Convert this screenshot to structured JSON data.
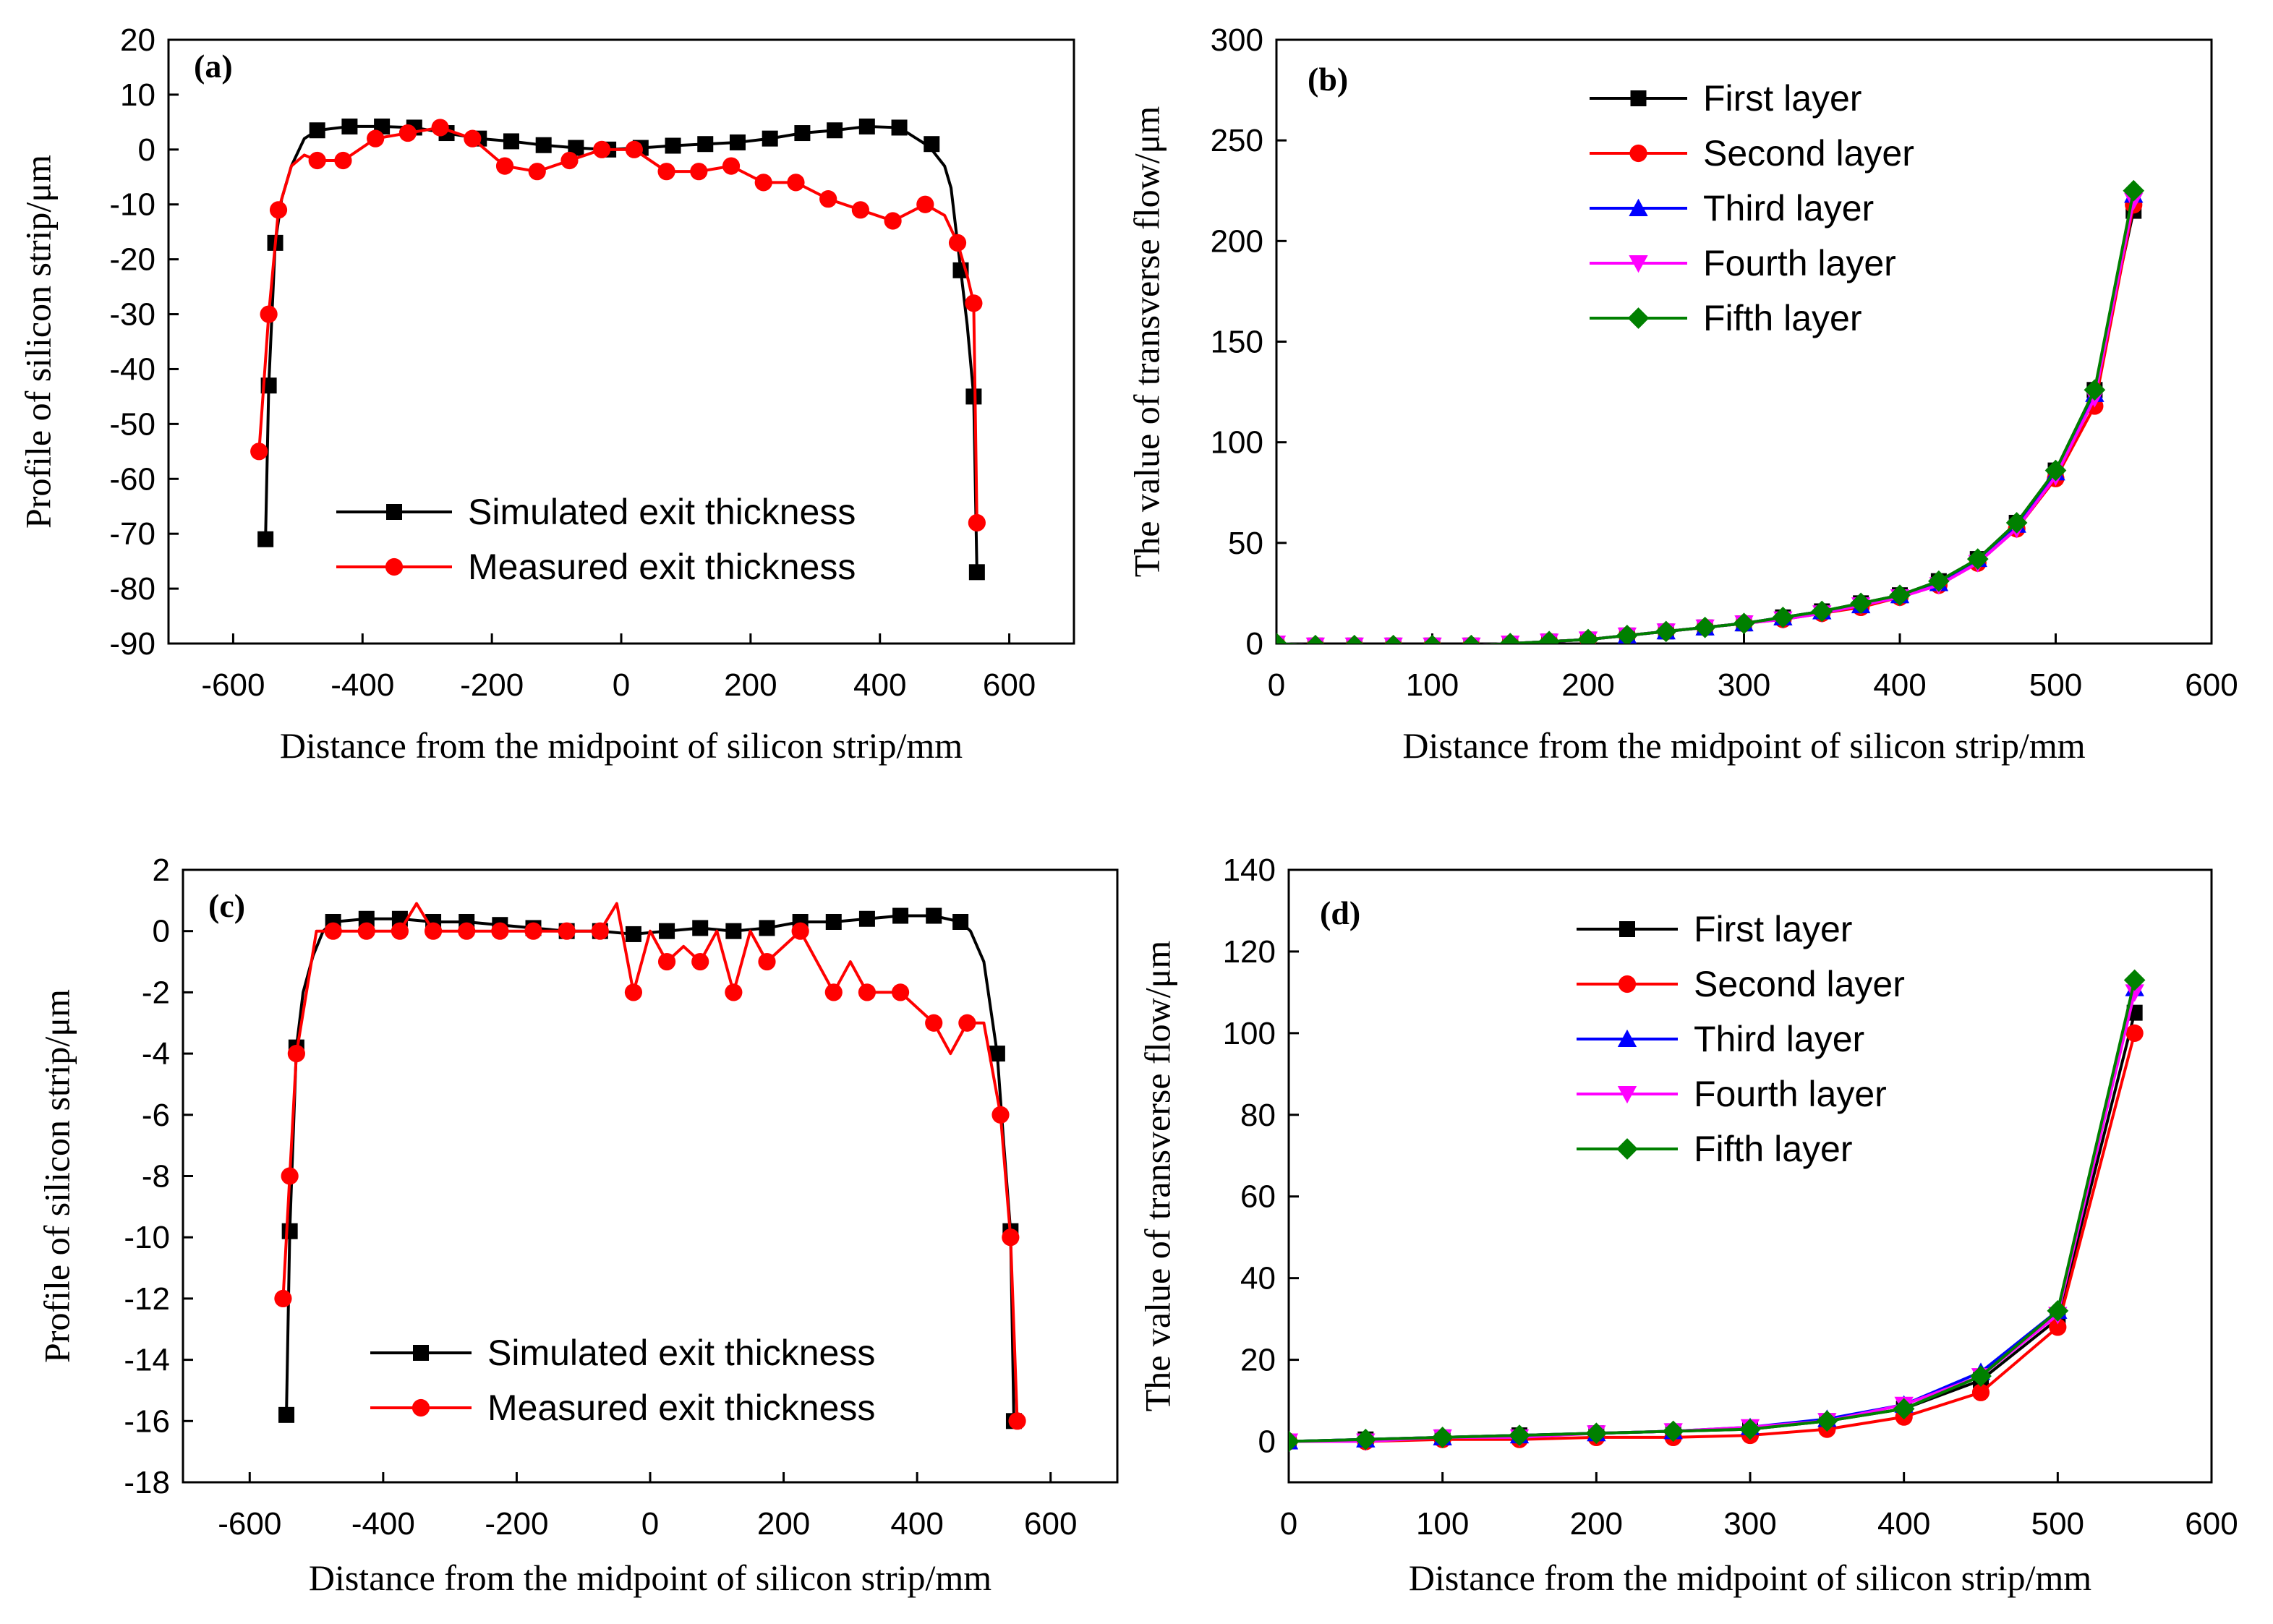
{
  "chart_data": [
    {
      "id": "a",
      "type": "line",
      "panel_label": "(a)",
      "xlabel": "Distance from the midpoint of silicon strip/mm",
      "ylabel": "Profile of silicon strip/μm",
      "xlim": [
        -700,
        700
      ],
      "ylim": [
        -90,
        20
      ],
      "xticks": [
        -600,
        -400,
        -200,
        0,
        200,
        400,
        600
      ],
      "yticks": [
        20,
        10,
        0,
        -10,
        -20,
        -30,
        -40,
        -50,
        -60,
        -70,
        -80,
        -90
      ],
      "legend_position": "bottom-center",
      "series": [
        {
          "name": "Simulated exit thickness",
          "color": "#000000",
          "marker": "square",
          "x": [
            -550,
            -545,
            -535,
            -525,
            -510,
            -490,
            -470,
            -420,
            -370,
            -320,
            -270,
            -220,
            -170,
            -120,
            -70,
            -20,
            30,
            80,
            130,
            180,
            230,
            280,
            330,
            380,
            430,
            470,
            480,
            500,
            510,
            525,
            535,
            545,
            550
          ],
          "y": [
            -71,
            -43,
            -17,
            -9,
            -3,
            2,
            3.5,
            4.2,
            4.2,
            4,
            3,
            2,
            1.5,
            0.8,
            0.3,
            0,
            0.3,
            0.7,
            1,
            1.3,
            2,
            3,
            3.5,
            4.2,
            4,
            1,
            0,
            -3,
            -7,
            -22,
            -32,
            -45,
            -77
          ],
          "marker_x": [
            -550,
            -545,
            -535,
            -470,
            -420,
            -370,
            -320,
            -270,
            -220,
            -170,
            -120,
            -70,
            -20,
            30,
            80,
            130,
            180,
            230,
            280,
            330,
            380,
            430,
            480,
            525,
            545,
            550
          ],
          "marker_y": [
            -71,
            -43,
            -17,
            3.5,
            4.2,
            4.2,
            4,
            3,
            2,
            1.5,
            0.8,
            0.3,
            0,
            0.3,
            0.7,
            1,
            1.3,
            2,
            3,
            3.5,
            4.2,
            4,
            1,
            -22,
            -45,
            -77
          ]
        },
        {
          "name": "Measured exit thickness",
          "color": "#ff0000",
          "marker": "circle",
          "x": [
            -560,
            -545,
            -530,
            -510,
            -490,
            -470,
            -430,
            -380,
            -330,
            -280,
            -230,
            -180,
            -130,
            -80,
            -30,
            20,
            70,
            120,
            170,
            220,
            270,
            320,
            370,
            420,
            470,
            500,
            520,
            535,
            545,
            550
          ],
          "y": [
            -55,
            -30,
            -11,
            -3,
            -1,
            -2,
            -2,
            2,
            3,
            4,
            2,
            -3,
            -4,
            -2,
            0,
            0,
            -4,
            -4,
            -3,
            -6,
            -6,
            -9,
            -11,
            -13,
            -10,
            -12,
            -17,
            -23,
            -28,
            -68
          ],
          "marker_x": [
            -560,
            -545,
            -530,
            -470,
            -430,
            -380,
            -330,
            -280,
            -230,
            -180,
            -130,
            -80,
            -30,
            20,
            70,
            120,
            170,
            220,
            270,
            320,
            370,
            420,
            470,
            520,
            545,
            550
          ],
          "marker_y": [
            -55,
            -30,
            -11,
            -2,
            -2,
            2,
            3,
            4,
            2,
            -3,
            -4,
            -2,
            0,
            0,
            -4,
            -4,
            -3,
            -6,
            -6,
            -9,
            -11,
            -13,
            -10,
            -17,
            -28,
            -68
          ]
        }
      ]
    },
    {
      "id": "b",
      "type": "line",
      "panel_label": "(b)",
      "xlabel": "Distance from the midpoint of silicon strip/mm",
      "ylabel": "The value of transverse flow/μm",
      "xlim": [
        0,
        600
      ],
      "ylim": [
        0,
        300
      ],
      "xticks": [
        0,
        100,
        200,
        300,
        400,
        500,
        600
      ],
      "yticks": [
        0,
        50,
        100,
        150,
        200,
        250,
        300
      ],
      "legend_position": "top-center",
      "series": [
        {
          "name": "First layer",
          "color": "#000000",
          "marker": "square",
          "x": [
            0,
            25,
            50,
            75,
            100,
            125,
            150,
            175,
            200,
            225,
            250,
            275,
            300,
            325,
            350,
            375,
            400,
            425,
            450,
            475,
            500,
            525,
            550
          ],
          "y": [
            0,
            -1,
            -1,
            -1,
            -1,
            -1,
            0,
            1,
            2,
            4,
            6,
            8,
            10,
            13,
            16,
            20,
            24,
            31,
            42,
            60,
            86,
            126,
            215
          ]
        },
        {
          "name": "Second layer",
          "color": "#ff0000",
          "marker": "circle",
          "x": [
            0,
            25,
            50,
            75,
            100,
            125,
            150,
            175,
            200,
            225,
            250,
            275,
            300,
            325,
            350,
            375,
            400,
            425,
            450,
            475,
            500,
            525,
            550
          ],
          "y": [
            0,
            -1,
            -1,
            -1,
            -1,
            -1,
            0,
            1,
            2,
            4,
            6,
            8,
            10,
            12,
            15,
            18,
            23,
            29,
            40,
            57,
            82,
            118,
            218
          ]
        },
        {
          "name": "Third layer",
          "color": "#0000ff",
          "marker": "triangle-up",
          "x": [
            0,
            25,
            50,
            75,
            100,
            125,
            150,
            175,
            200,
            225,
            250,
            275,
            300,
            325,
            350,
            375,
            400,
            425,
            450,
            475,
            500,
            525,
            550
          ],
          "y": [
            0,
            -1,
            -1,
            -1,
            -1,
            -1,
            0,
            1,
            2,
            4,
            6,
            8,
            10,
            13,
            16,
            19,
            24,
            30,
            42,
            59,
            85,
            124,
            223
          ]
        },
        {
          "name": "Fourth layer",
          "color": "#ff00ff",
          "marker": "triangle-down",
          "x": [
            0,
            25,
            50,
            75,
            100,
            125,
            150,
            175,
            200,
            225,
            250,
            275,
            300,
            325,
            350,
            375,
            400,
            425,
            450,
            475,
            500,
            525,
            550
          ],
          "y": [
            0,
            -1,
            -1,
            -1,
            -1,
            -1,
            0,
            1,
            2,
            4,
            6,
            8,
            10,
            12,
            15,
            19,
            23,
            29,
            40,
            57,
            83,
            122,
            220
          ]
        },
        {
          "name": "Fifth layer",
          "color": "#008000",
          "marker": "diamond",
          "x": [
            0,
            25,
            50,
            75,
            100,
            125,
            150,
            175,
            200,
            225,
            250,
            275,
            300,
            325,
            350,
            375,
            400,
            425,
            450,
            475,
            500,
            525,
            550
          ],
          "y": [
            0,
            -1,
            -1,
            -1,
            -1,
            -1,
            0,
            1,
            2,
            4,
            6,
            8,
            10,
            13,
            16,
            20,
            24,
            31,
            42,
            60,
            86,
            126,
            225
          ]
        }
      ]
    },
    {
      "id": "c",
      "type": "line",
      "panel_label": "(c)",
      "xlabel": "Distance from the midpoint of silicon strip/mm",
      "ylabel": "Profile of silicon strip/μm",
      "xlim": [
        -700,
        700
      ],
      "ylim": [
        -18,
        2
      ],
      "xticks": [
        -600,
        -400,
        -200,
        0,
        200,
        400,
        600
      ],
      "yticks": [
        2,
        0,
        -2,
        -4,
        -6,
        -8,
        -10,
        -12,
        -14,
        -16,
        -18
      ],
      "legend_position": "bottom-center",
      "series": [
        {
          "name": "Simulated exit thickness",
          "color": "#000000",
          "marker": "square",
          "x": [
            -545,
            -540,
            -530,
            -520,
            -505,
            -490,
            -475,
            -425,
            -375,
            -325,
            -275,
            -225,
            -175,
            -125,
            -75,
            -25,
            25,
            75,
            125,
            175,
            225,
            275,
            325,
            375,
            425,
            465,
            480,
            500,
            510,
            520,
            530,
            540,
            545
          ],
          "y": [
            -15.8,
            -9.8,
            -3.8,
            -2,
            -0.8,
            0,
            0.3,
            0.4,
            0.4,
            0.3,
            0.3,
            0.2,
            0.1,
            0,
            0,
            -0.1,
            0,
            0.1,
            0,
            0.1,
            0.3,
            0.3,
            0.4,
            0.5,
            0.5,
            0.3,
            0,
            -1,
            -2.5,
            -4,
            -7,
            -9.8,
            -16
          ],
          "marker_x": [
            -545,
            -540,
            -530,
            -475,
            -425,
            -375,
            -325,
            -275,
            -225,
            -175,
            -125,
            -75,
            -25,
            25,
            75,
            125,
            175,
            225,
            275,
            325,
            375,
            425,
            465,
            520,
            540,
            545
          ],
          "marker_y": [
            -15.8,
            -9.8,
            -3.8,
            0.3,
            0.4,
            0.4,
            0.3,
            0.3,
            0.2,
            0.1,
            0,
            0,
            -0.1,
            0,
            0.1,
            0,
            0.1,
            0.3,
            0.3,
            0.4,
            0.5,
            0.5,
            0.3,
            -4,
            -9.8,
            -16
          ]
        },
        {
          "name": "Measured exit thickness",
          "color": "#ff0000",
          "marker": "circle",
          "x": [
            -550,
            -540,
            -530,
            -500,
            -475,
            -425,
            -375,
            -350,
            -325,
            -275,
            -225,
            -175,
            -125,
            -75,
            -50,
            -25,
            0,
            25,
            50,
            75,
            100,
            125,
            150,
            175,
            200,
            225,
            250,
            275,
            300,
            325,
            375,
            425,
            450,
            475,
            490,
            500,
            525,
            540,
            550
          ],
          "y": [
            -12,
            -8,
            -4,
            0,
            0,
            0,
            0,
            0.9,
            0,
            0,
            0,
            0,
            0,
            0,
            0.9,
            -2,
            0,
            -1,
            -0.5,
            -1,
            0,
            -2,
            0,
            -1,
            -0.5,
            0,
            -1,
            -2,
            -1,
            -2,
            -2,
            -3,
            -4,
            -3,
            -3,
            -3,
            -6,
            -10,
            -16
          ],
          "marker_x": [
            -550,
            -540,
            -530,
            -475,
            -425,
            -375,
            -325,
            -275,
            -225,
            -175,
            -125,
            -75,
            -25,
            25,
            75,
            125,
            175,
            225,
            275,
            325,
            375,
            425,
            475,
            525,
            540,
            550
          ],
          "marker_y": [
            -12,
            -8,
            -4,
            0,
            0,
            0,
            0,
            0,
            0,
            0,
            0,
            0,
            -2,
            -1,
            -1,
            -2,
            -1,
            0,
            -2,
            -2,
            -2,
            -3,
            -3,
            -6,
            -10,
            -16
          ]
        }
      ]
    },
    {
      "id": "d",
      "type": "line",
      "panel_label": "(d)",
      "xlabel": "Distance from the midpoint of silicon strip/mm",
      "ylabel": "The value of transverse flow/μm",
      "xlim": [
        0,
        600
      ],
      "ylim": [
        -10,
        140
      ],
      "xticks": [
        0,
        100,
        200,
        300,
        400,
        500,
        600
      ],
      "yticks": [
        0,
        20,
        40,
        60,
        80,
        100,
        120,
        140
      ],
      "legend_position": "top-center",
      "series": [
        {
          "name": "First layer",
          "color": "#000000",
          "marker": "square",
          "x": [
            0,
            50,
            100,
            150,
            200,
            250,
            300,
            350,
            400,
            450,
            500,
            550
          ],
          "y": [
            0,
            0.5,
            1,
            1.5,
            2,
            2.5,
            3,
            5,
            8,
            15,
            30,
            105
          ]
        },
        {
          "name": "Second layer",
          "color": "#ff0000",
          "marker": "circle",
          "x": [
            0,
            50,
            100,
            150,
            200,
            250,
            300,
            350,
            400,
            450,
            500,
            550
          ],
          "y": [
            0,
            0,
            0.5,
            0.5,
            1,
            1,
            1.5,
            3,
            6,
            12,
            28,
            100
          ]
        },
        {
          "name": "Third layer",
          "color": "#0000ff",
          "marker": "triangle-up",
          "x": [
            0,
            50,
            100,
            150,
            200,
            250,
            300,
            350,
            400,
            450,
            500,
            550
          ],
          "y": [
            0,
            0.5,
            1,
            1.5,
            2,
            2.5,
            3.5,
            5.5,
            9,
            17,
            32,
            111
          ]
        },
        {
          "name": "Fourth layer",
          "color": "#ff00ff",
          "marker": "triangle-down",
          "x": [
            0,
            50,
            100,
            150,
            200,
            250,
            300,
            350,
            400,
            450,
            500,
            550
          ],
          "y": [
            0,
            0,
            1,
            1,
            2,
            2.5,
            3.5,
            5,
            9,
            16,
            31,
            110
          ]
        },
        {
          "name": "Fifth layer",
          "color": "#008000",
          "marker": "diamond",
          "x": [
            0,
            50,
            100,
            150,
            200,
            250,
            300,
            350,
            400,
            450,
            500,
            550
          ],
          "y": [
            0,
            0.5,
            1,
            1.5,
            2,
            2.5,
            3,
            5,
            8,
            16,
            32,
            113
          ]
        }
      ]
    }
  ]
}
